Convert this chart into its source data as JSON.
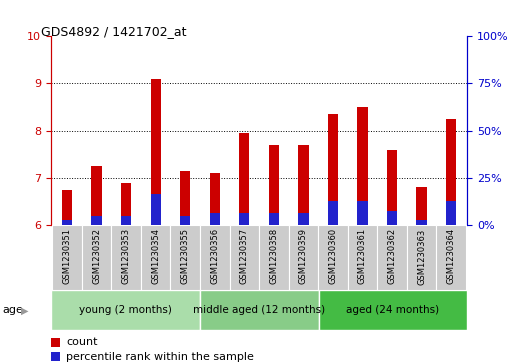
{
  "title": "GDS4892 / 1421702_at",
  "samples": [
    "GSM1230351",
    "GSM1230352",
    "GSM1230353",
    "GSM1230354",
    "GSM1230355",
    "GSM1230356",
    "GSM1230357",
    "GSM1230358",
    "GSM1230359",
    "GSM1230360",
    "GSM1230361",
    "GSM1230362",
    "GSM1230363",
    "GSM1230364"
  ],
  "count_values": [
    6.75,
    7.25,
    6.9,
    9.1,
    7.15,
    7.1,
    7.95,
    7.7,
    7.7,
    8.35,
    8.5,
    7.6,
    6.8,
    8.25
  ],
  "percentile_values": [
    6.1,
    6.2,
    6.2,
    6.65,
    6.2,
    6.25,
    6.25,
    6.25,
    6.25,
    6.5,
    6.5,
    6.3,
    6.1,
    6.5
  ],
  "y_min": 6.0,
  "y_max": 10.0,
  "y_ticks_left": [
    6,
    7,
    8,
    9,
    10
  ],
  "y_ticks_right_vals": [
    6.0,
    7.0,
    8.0,
    9.0,
    10.0
  ],
  "y_ticks_right_labels": [
    "0%",
    "25%",
    "50%",
    "75%",
    "100%"
  ],
  "bar_color": "#cc0000",
  "percentile_color": "#2222cc",
  "groups": [
    {
      "label": "young (2 months)",
      "start": 0,
      "end": 5,
      "color": "#aaddaa"
    },
    {
      "label": "middle aged (12 months)",
      "start": 5,
      "end": 9,
      "color": "#88cc88"
    },
    {
      "label": "aged (24 months)",
      "start": 9,
      "end": 14,
      "color": "#44bb44"
    }
  ],
  "sample_bg_color": "#cccccc",
  "left_axis_color": "#cc0000",
  "right_axis_color": "#0000cc",
  "bar_width": 0.35
}
